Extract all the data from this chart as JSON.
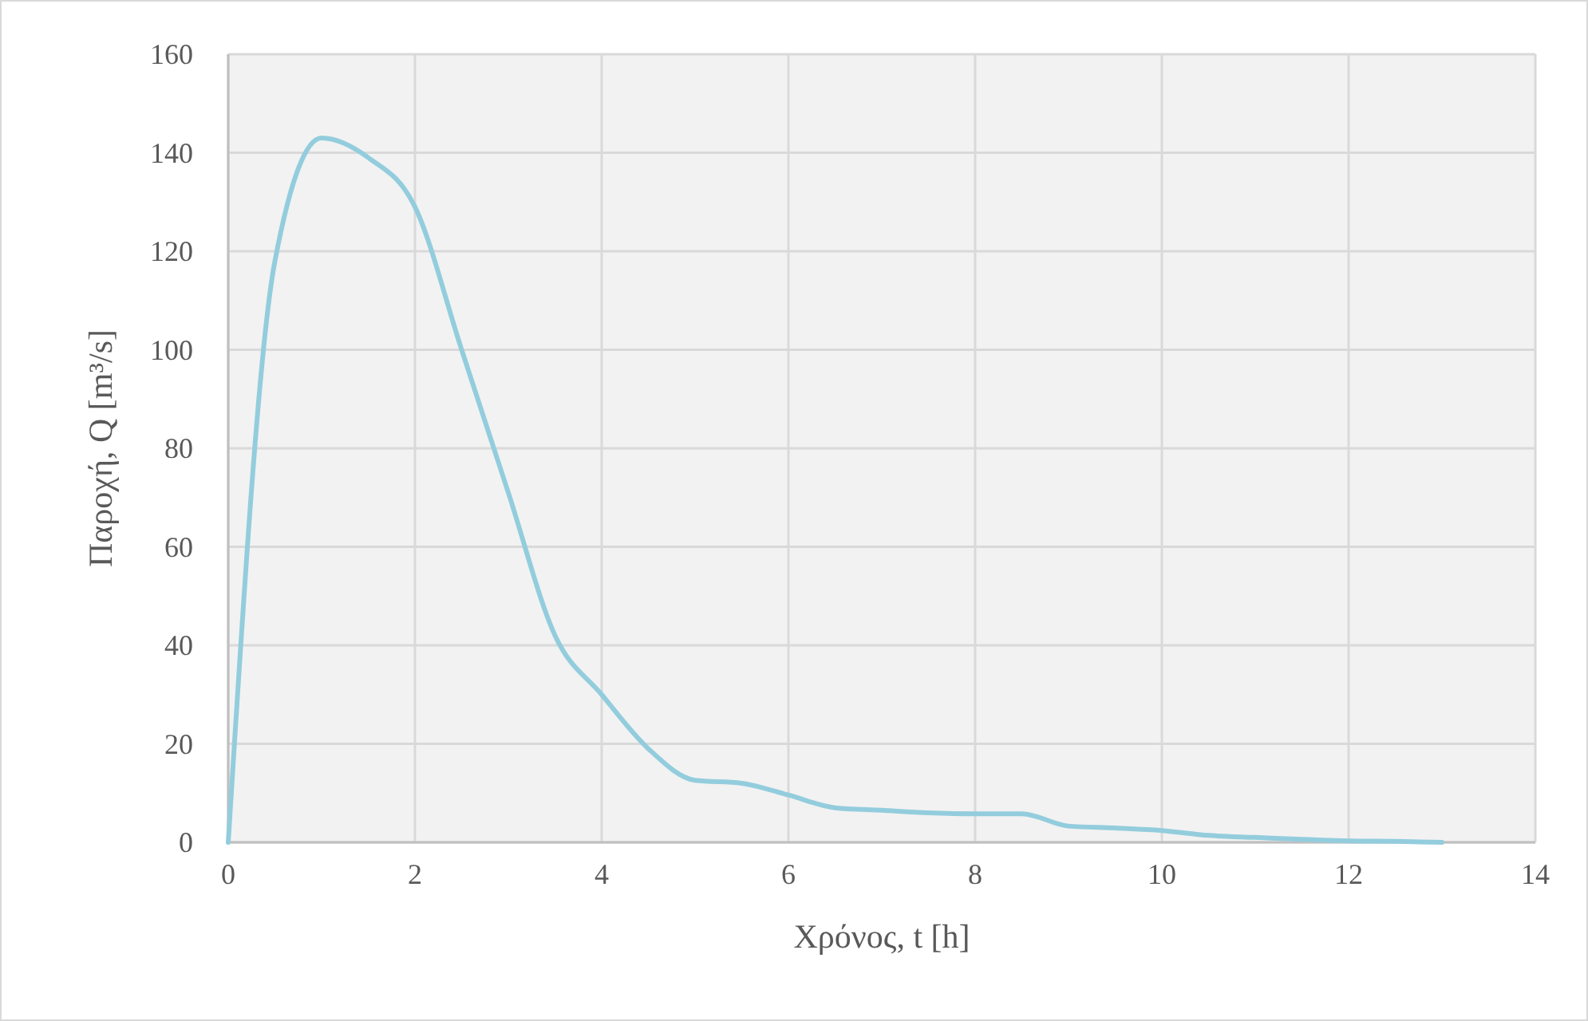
{
  "chart_data": {
    "type": "line",
    "xlabel": "Χρόνος, t [h]",
    "ylabel": "Παροχή, Q [m³/s]",
    "x": [
      0,
      0.5,
      1,
      1.5,
      2,
      2.5,
      3,
      3.5,
      4,
      4.5,
      5,
      5.5,
      6,
      6.5,
      7,
      7.5,
      8,
      8.5,
      9,
      9.5,
      10,
      10.5,
      11,
      11.5,
      12,
      12.5,
      13
    ],
    "series": [
      {
        "color": "#93cddd",
        "values": [
          0,
          118,
          143,
          139,
          129,
          100,
          71,
          42,
          30,
          19,
          12.6,
          12,
          9.6,
          7,
          6.5,
          6,
          5.8,
          5.8,
          3.3,
          2.9,
          2.4,
          1.4,
          1,
          0.6,
          0.3,
          0.2,
          0
        ]
      }
    ],
    "xlim": [
      0,
      14
    ],
    "xticks": [
      0,
      2,
      4,
      6,
      8,
      10,
      12,
      14
    ],
    "ylim": [
      0,
      160
    ],
    "yticks": [
      0,
      20,
      40,
      60,
      80,
      100,
      120,
      140,
      160
    ],
    "grid": true,
    "marker": "none",
    "line_style": "solid"
  }
}
